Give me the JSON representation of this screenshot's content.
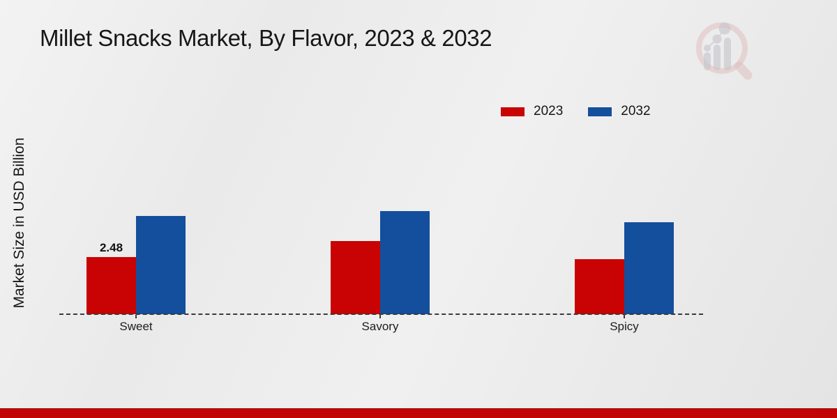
{
  "title": "Millet Snacks Market, By Flavor, 2023 & 2032",
  "y_axis_label": "Market Size in USD Billion",
  "chart_data": {
    "type": "bar",
    "title": "Millet Snacks Market, By Flavor, 2023 & 2032",
    "ylabel": "Market Size in USD Billion",
    "categories": [
      "Sweet",
      "Savory",
      "Spicy"
    ],
    "series": [
      {
        "name": "2023",
        "color": "#c90303",
        "values": [
          2.48,
          3.18,
          2.39
        ]
      },
      {
        "name": "2032",
        "color": "#134f9c",
        "values": [
          4.26,
          4.48,
          3.99
        ]
      }
    ],
    "data_labels": [
      {
        "series": "2023",
        "category": "Sweet",
        "text": "2.48"
      }
    ],
    "ylim": [
      0,
      5
    ],
    "grid": false,
    "baseline_style": "dashed",
    "legend_position": "top-right",
    "y_axis_ticks_visible": false
  },
  "branding": {
    "watermark_name": "market-research-future-logo",
    "footer_bar_color": "#c10505",
    "accent_red": "#c90303",
    "accent_blue": "#134f9c"
  }
}
